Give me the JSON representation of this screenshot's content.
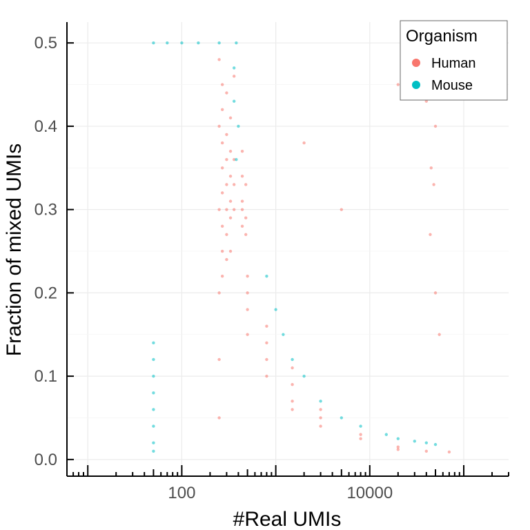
{
  "chart_data": {
    "type": "scatter",
    "title": "",
    "xlabel": "#Real UMIs",
    "ylabel": "Fraction of mixed UMIs",
    "x_scale": "log10",
    "xlim": [
      6,
      300000
    ],
    "ylim": [
      -0.02,
      0.525
    ],
    "x_ticks": [
      {
        "value": 100,
        "label": "100"
      },
      {
        "value": 10000,
        "label": "10000"
      }
    ],
    "y_ticks": [
      {
        "value": 0.0,
        "label": "0.0"
      },
      {
        "value": 0.1,
        "label": "0.1"
      },
      {
        "value": 0.2,
        "label": "0.2"
      },
      {
        "value": 0.3,
        "label": "0.3"
      },
      {
        "value": 0.4,
        "label": "0.4"
      },
      {
        "value": 0.5,
        "label": "0.5"
      }
    ],
    "grid": true,
    "legend": {
      "title": "Organism",
      "placement": "top-right",
      "entries": [
        {
          "name": "Human",
          "color": "#f8766d"
        },
        {
          "name": "Mouse",
          "color": "#00bfc4"
        }
      ]
    },
    "series": [
      {
        "name": "Human",
        "color": "#f8766d",
        "points": [
          [
            250,
            0.05
          ],
          [
            250,
            0.12
          ],
          [
            250,
            0.2
          ],
          [
            250,
            0.3
          ],
          [
            250,
            0.4
          ],
          [
            250,
            0.48
          ],
          [
            270,
            0.22
          ],
          [
            270,
            0.25
          ],
          [
            270,
            0.28
          ],
          [
            270,
            0.32
          ],
          [
            270,
            0.35
          ],
          [
            270,
            0.38
          ],
          [
            270,
            0.42
          ],
          [
            270,
            0.45
          ],
          [
            300,
            0.24
          ],
          [
            300,
            0.27
          ],
          [
            300,
            0.3
          ],
          [
            300,
            0.33
          ],
          [
            300,
            0.36
          ],
          [
            300,
            0.39
          ],
          [
            300,
            0.44
          ],
          [
            330,
            0.25
          ],
          [
            330,
            0.29
          ],
          [
            330,
            0.31
          ],
          [
            330,
            0.34
          ],
          [
            330,
            0.37
          ],
          [
            330,
            0.41
          ],
          [
            360,
            0.3
          ],
          [
            360,
            0.33
          ],
          [
            360,
            0.36
          ],
          [
            360,
            0.46
          ],
          [
            440,
            0.28
          ],
          [
            440,
            0.31
          ],
          [
            440,
            0.34
          ],
          [
            440,
            0.37
          ],
          [
            440,
            0.3
          ],
          [
            480,
            0.27
          ],
          [
            480,
            0.33
          ],
          [
            480,
            0.29
          ],
          [
            500,
            0.15
          ],
          [
            500,
            0.18
          ],
          [
            500,
            0.2
          ],
          [
            500,
            0.22
          ],
          [
            800,
            0.1
          ],
          [
            800,
            0.12
          ],
          [
            800,
            0.14
          ],
          [
            800,
            0.16
          ],
          [
            1500,
            0.06
          ],
          [
            1500,
            0.07
          ],
          [
            1500,
            0.09
          ],
          [
            1500,
            0.11
          ],
          [
            3000,
            0.04
          ],
          [
            3000,
            0.05
          ],
          [
            3000,
            0.06
          ],
          [
            8000,
            0.025
          ],
          [
            8000,
            0.03
          ],
          [
            20000,
            0.012
          ],
          [
            20000,
            0.015
          ],
          [
            40000,
            0.01
          ],
          [
            70000,
            0.009
          ],
          [
            40000,
            0.43
          ],
          [
            50000,
            0.4
          ],
          [
            45000,
            0.35
          ],
          [
            48000,
            0.33
          ],
          [
            44000,
            0.27
          ],
          [
            50000,
            0.2
          ],
          [
            55000,
            0.15
          ],
          [
            20000,
            0.45
          ],
          [
            5000,
            0.3
          ],
          [
            2000,
            0.38
          ]
        ]
      },
      {
        "name": "Mouse",
        "color": "#00bfc4",
        "points": [
          [
            50,
            0.5
          ],
          [
            70,
            0.5
          ],
          [
            100,
            0.5
          ],
          [
            150,
            0.5
          ],
          [
            250,
            0.5
          ],
          [
            380,
            0.5
          ],
          [
            360,
            0.47
          ],
          [
            360,
            0.43
          ],
          [
            400,
            0.4
          ],
          [
            380,
            0.36
          ],
          [
            800,
            0.22
          ],
          [
            1000,
            0.18
          ],
          [
            1200,
            0.15
          ],
          [
            1500,
            0.12
          ],
          [
            2000,
            0.1
          ],
          [
            3000,
            0.07
          ],
          [
            5000,
            0.05
          ],
          [
            8000,
            0.04
          ],
          [
            15000,
            0.03
          ],
          [
            20000,
            0.025
          ],
          [
            30000,
            0.022
          ],
          [
            40000,
            0.02
          ],
          [
            50000,
            0.018
          ],
          [
            50,
            0.01
          ],
          [
            50,
            0.02
          ],
          [
            50,
            0.04
          ],
          [
            50,
            0.06
          ],
          [
            50,
            0.08
          ],
          [
            50,
            0.1
          ],
          [
            50,
            0.12
          ],
          [
            50,
            0.14
          ]
        ]
      }
    ]
  }
}
